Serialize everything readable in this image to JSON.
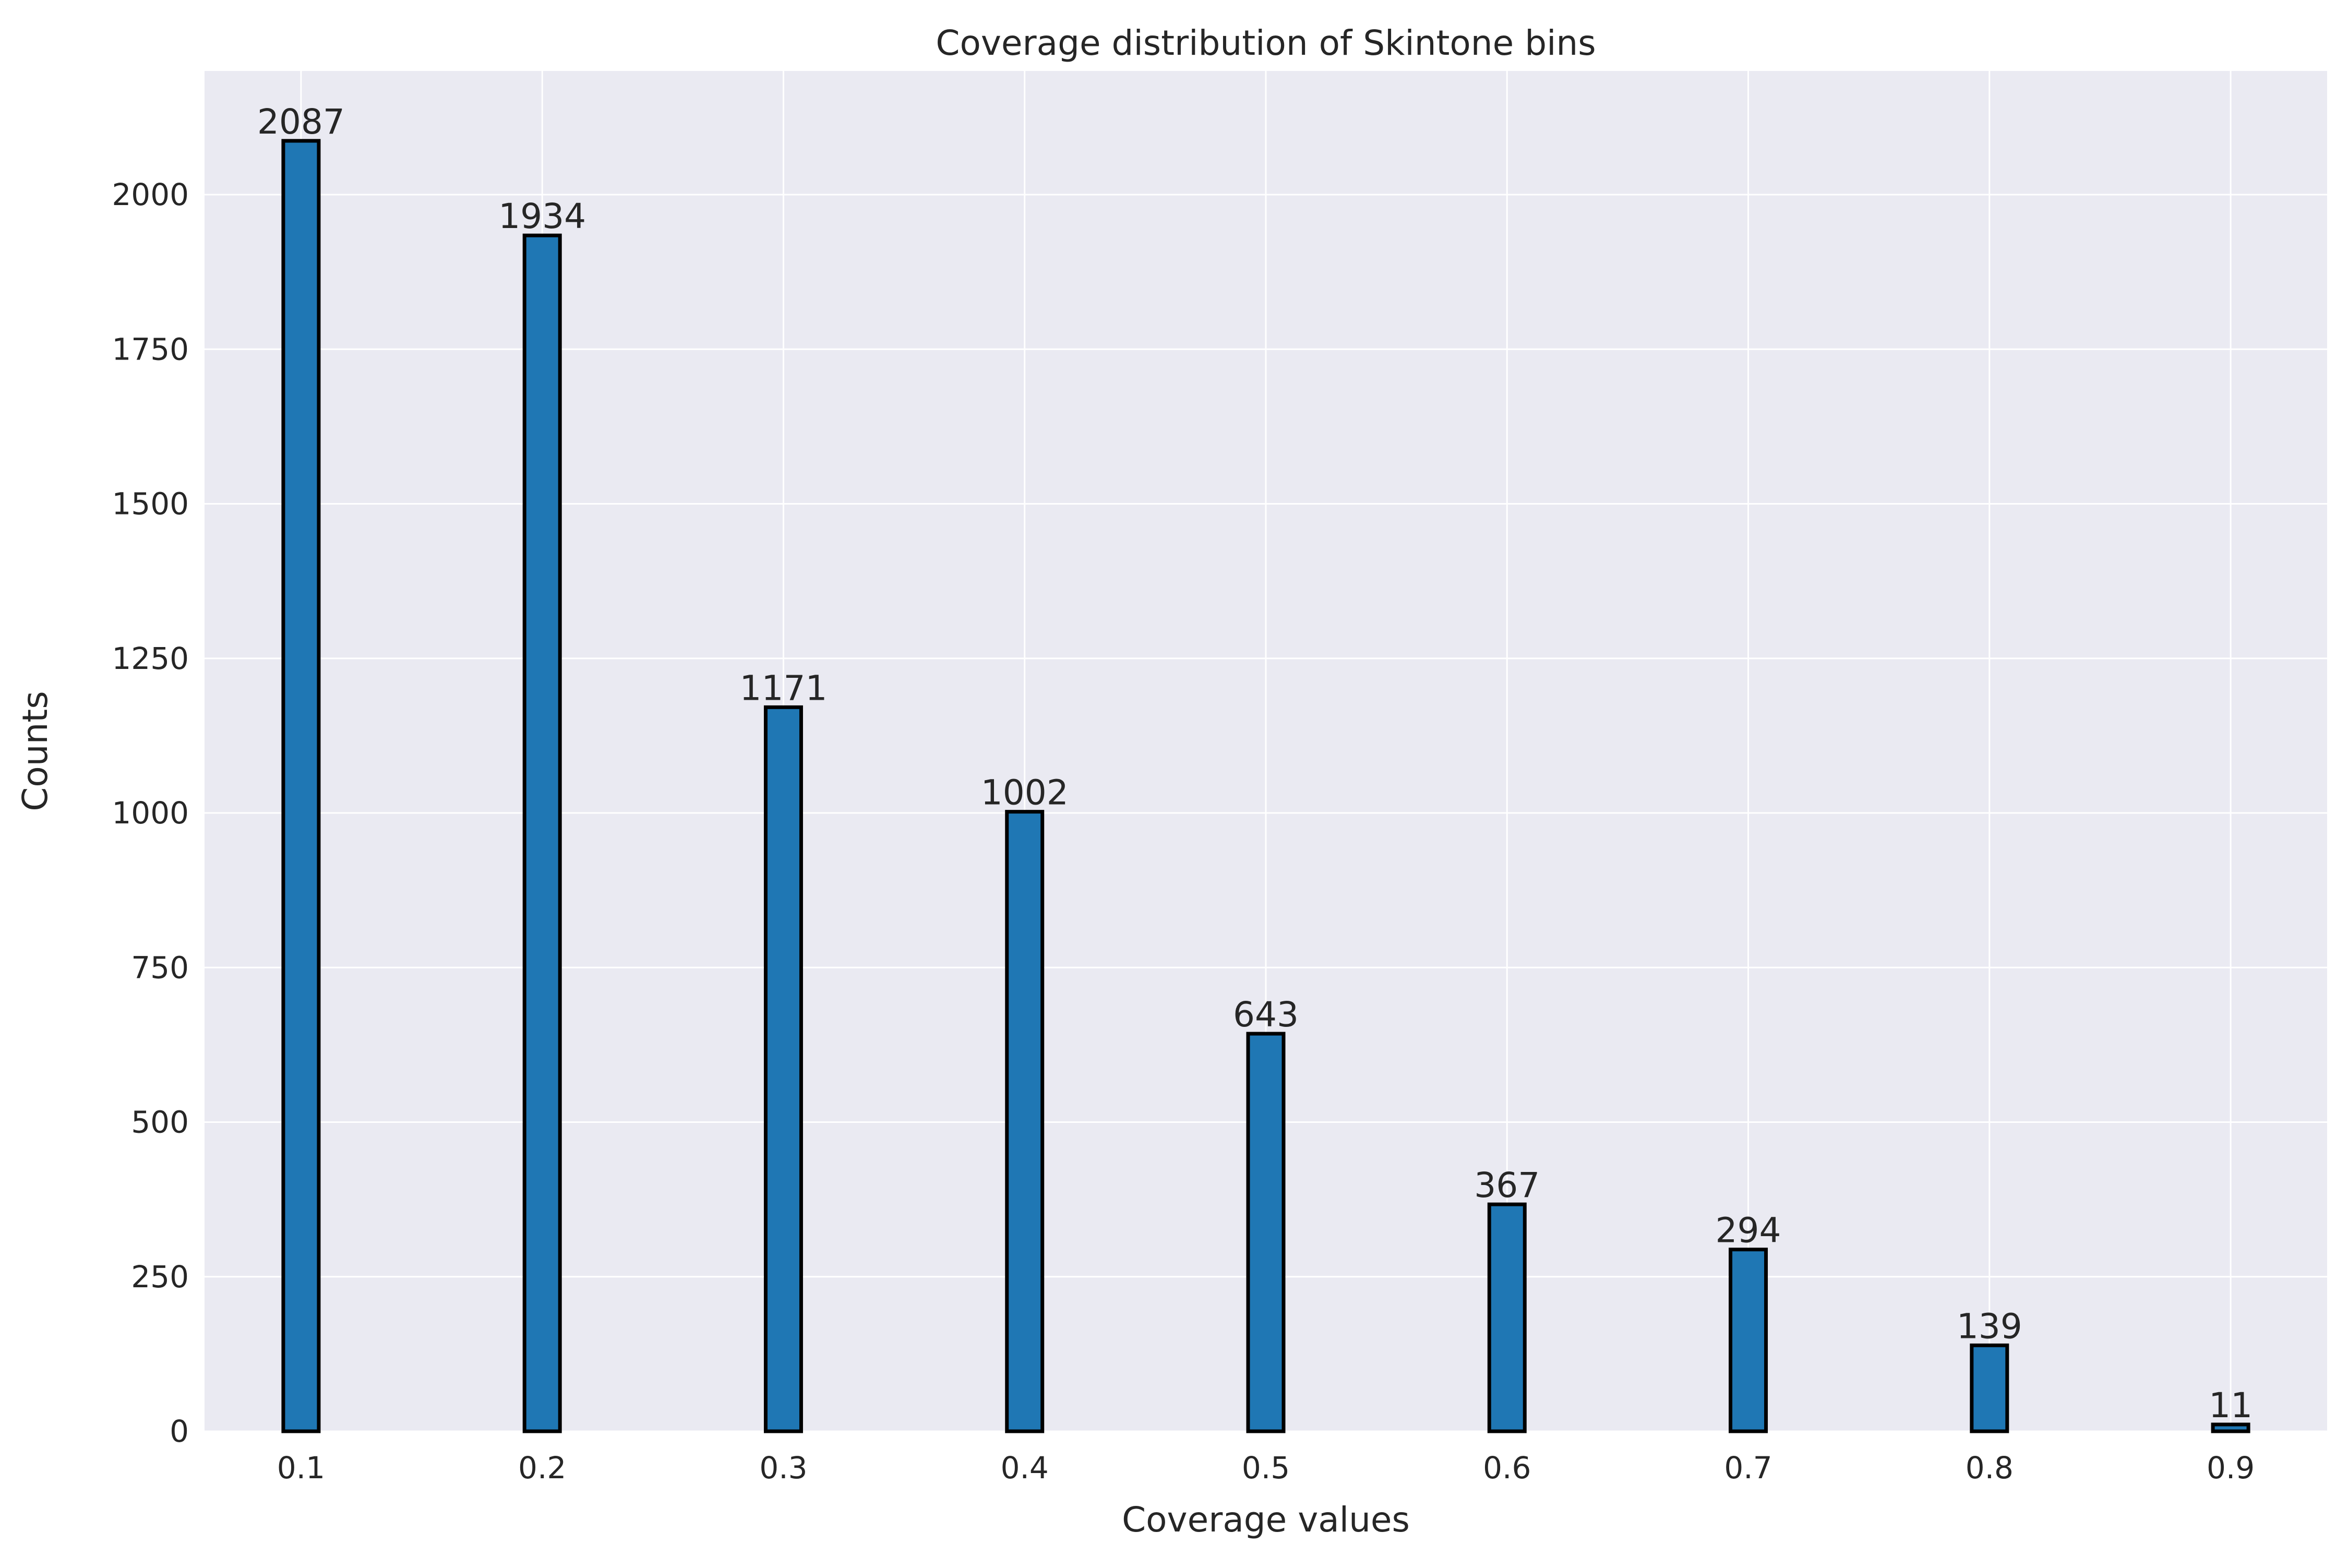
{
  "chart_data": {
    "type": "bar",
    "title": "Coverage distribution of Skintone bins",
    "xlabel": "Coverage values",
    "ylabel": "Counts",
    "categories": [
      "0.1",
      "0.2",
      "0.3",
      "0.4",
      "0.5",
      "0.6",
      "0.7",
      "0.8",
      "0.9"
    ],
    "x": [
      0.1,
      0.2,
      0.3,
      0.4,
      0.5,
      0.6,
      0.7,
      0.8,
      0.9
    ],
    "values": [
      2087,
      1934,
      1171,
      1002,
      643,
      367,
      294,
      139,
      11
    ],
    "data_labels": [
      "2087",
      "1934",
      "1171",
      "1002",
      "643",
      "367",
      "294",
      "139",
      "11"
    ],
    "xlim": [
      0.06,
      0.94
    ],
    "ylim": [
      0,
      2200
    ],
    "yticks": [
      0,
      250,
      500,
      750,
      1000,
      1250,
      1500,
      1750,
      2000
    ],
    "ytick_labels": [
      "0",
      "250",
      "500",
      "750",
      "1000",
      "1250",
      "1500",
      "1750",
      "2000"
    ],
    "grid": true,
    "legend": "none",
    "colors": {
      "bar_fill": "#1f77b4",
      "bar_edge": "#000000",
      "plot_background": "#eaeaf2",
      "grid": "#ffffff",
      "text": "#262626"
    }
  }
}
